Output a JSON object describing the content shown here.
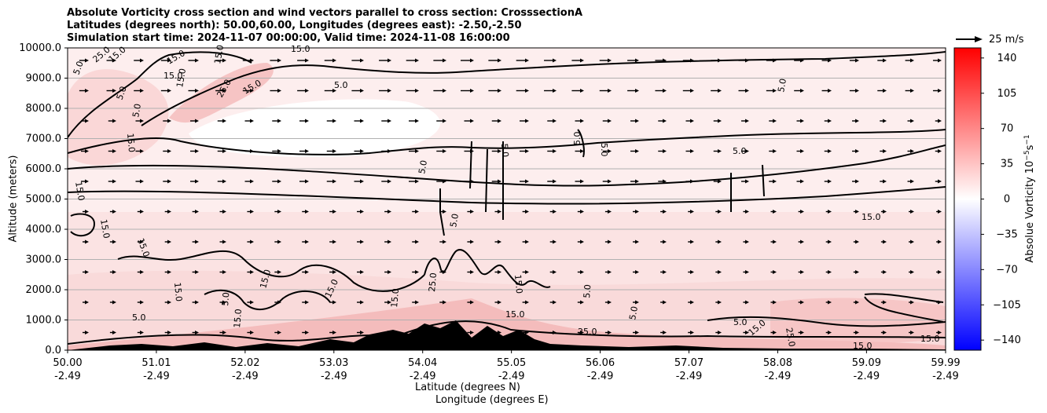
{
  "chart_data": {
    "type": "heatmap",
    "title_lines": [
      "Absolute Vorticity cross section and wind vectors parallel to cross section: CrosssectionA",
      "Latitudes (degrees north): 50.00,60.00, Longitudes (degrees east): -2.50,-2.50",
      "Simulation start time: 2024-11-07 00:00:00, Valid time: 2024-11-08 16:00:00"
    ],
    "xlabel_lat": "Latitude (degrees N)",
    "xlabel_lon": "Longitude (degrees E)",
    "ylabel": "Altitude (meters)",
    "x_ticks_lat": [
      "50.00",
      "51.01",
      "52.02",
      "53.03",
      "54.04",
      "55.05",
      "56.06",
      "57.07",
      "58.08",
      "59.09",
      "59.99"
    ],
    "x_ticks_lon": [
      "-2.49",
      "-2.49",
      "-2.49",
      "-2.49",
      "-2.49",
      "-2.49",
      "-2.49",
      "-2.49",
      "-2.49",
      "-2.49",
      "-2.49"
    ],
    "xlim": [
      50.0,
      59.99
    ],
    "y_ticks": [
      "0.0",
      "1000.0",
      "2000.0",
      "3000.0",
      "4000.0",
      "5000.0",
      "6000.0",
      "7000.0",
      "8000.0",
      "9000.0",
      "10000.0"
    ],
    "ylim": [
      0,
      10000
    ],
    "grid": "horizontal",
    "colorbar": {
      "label": "Absolue Vorticity 10$^{-5}$s$^{-1}$",
      "label_text": "Absolue Vorticity 10",
      "label_sup": "−5",
      "label_unit": "s",
      "label_unit_sup": "−1",
      "ticks": [
        "140",
        "105",
        "70",
        "35",
        "0",
        "−35",
        "−70",
        "−105",
        "−140"
      ],
      "range": [
        -150,
        150
      ],
      "colormap": "bwr"
    },
    "quiver_key": "25 m/s",
    "contour_labels": [
      "5.0",
      "15.0",
      "25.0"
    ],
    "colors": {
      "positive": "#ff0000",
      "negative": "#0000ff",
      "contour": "#000000",
      "grid": "#b0b0b0"
    }
  }
}
